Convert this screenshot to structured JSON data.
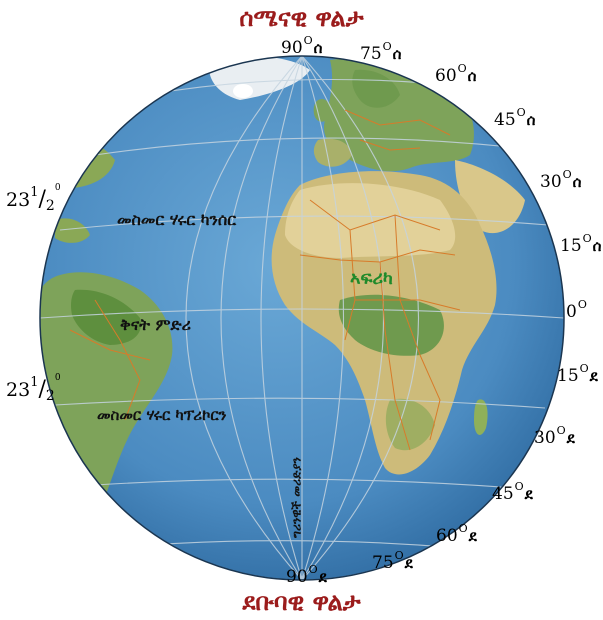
{
  "titles": {
    "north_pole": "ሰሜናዊ ዋልታ",
    "south_pole": "ደቡባዊ ዋልታ"
  },
  "latitudes": {
    "n90": {
      "value": "90",
      "hemi": "ሰ"
    },
    "n75": {
      "value": "75",
      "hemi": "ሰ"
    },
    "n60": {
      "value": "60",
      "hemi": "ሰ"
    },
    "n45": {
      "value": "45",
      "hemi": "ሰ"
    },
    "n30": {
      "value": "30",
      "hemi": "ሰ"
    },
    "n15": {
      "value": "15",
      "hemi": "ሰ"
    },
    "eq": {
      "value": "0",
      "hemi": ""
    },
    "s15": {
      "value": "15",
      "hemi": "ደ"
    },
    "s30": {
      "value": "30",
      "hemi": "ደ"
    },
    "s45": {
      "value": "45",
      "hemi": "ደ"
    },
    "s60": {
      "value": "60",
      "hemi": "ደ"
    },
    "s75": {
      "value": "75",
      "hemi": "ደ"
    },
    "s90": {
      "value": "90",
      "hemi": "ደ"
    }
  },
  "tropic_angle": {
    "whole": "23",
    "numerator": "1",
    "denominator": "2",
    "degree_mark": "0"
  },
  "globe_labels": {
    "tropic_cancer": "መስመር ሃሩር ካንሰር",
    "equator": "ቅናት ምድሪ",
    "tropic_capricorn": "መስመር ሃሩር ካፕሪኮርን",
    "africa": "ኣፍሪካ",
    "prime_meridian": "ግሪንዊች መሪድያን"
  },
  "colors": {
    "ocean": "#4d8fc4",
    "land": "#8fb05a",
    "desert": "#d9c78a",
    "title": "#9b1c1c",
    "africa_label": "#1f8a2a",
    "borders": "#d77b2a"
  }
}
